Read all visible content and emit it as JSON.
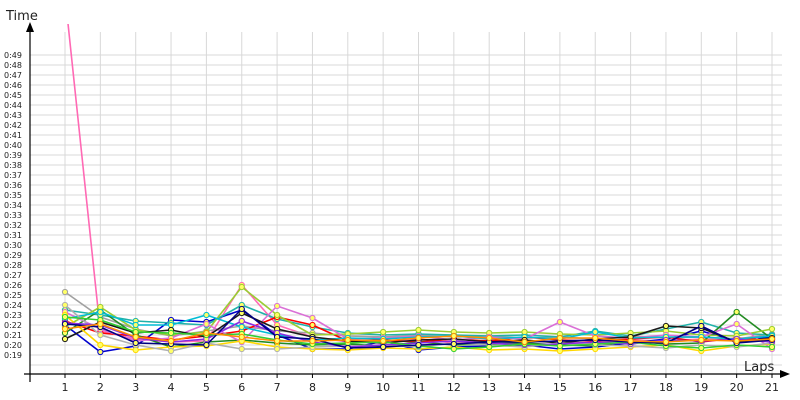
{
  "chart_data": {
    "type": "line",
    "ylabel": "Time",
    "xlabel": "Laps",
    "x": [
      1,
      2,
      3,
      4,
      5,
      6,
      7,
      8,
      9,
      10,
      11,
      12,
      13,
      14,
      15,
      16,
      17,
      18,
      19,
      20,
      21
    ],
    "x_ticks": [
      "1",
      "2",
      "3",
      "4",
      "5",
      "6",
      "7",
      "8",
      "9",
      "10",
      "11",
      "12",
      "13",
      "14",
      "15",
      "16",
      "17",
      "18",
      "19",
      "20",
      "21"
    ],
    "y_ticks": [
      "0:19",
      "0:20",
      "0:21",
      "0:22",
      "0:23",
      "0:24",
      "0:25",
      "0:26",
      "0:27",
      "0:28",
      "0:29",
      "0:30",
      "0:31",
      "0:32",
      "0:33",
      "0:34",
      "0:35",
      "0:36",
      "0:37",
      "0:38",
      "0:39",
      "0:40",
      "0:41",
      "0:42",
      "0:43",
      "0:44",
      "0:45",
      "0:46",
      "0:47",
      "0:48",
      "0:49"
    ],
    "ylim": [
      18,
      50
    ],
    "grid": true,
    "series": [
      {
        "color": "#ff69b4",
        "values": [
          55,
          21.4,
          20.6,
          20.3,
          20.4,
          26.0,
          22.0,
          20.8,
          20.3,
          20.4,
          20.6,
          20.2,
          20.5,
          20.4,
          20.3,
          20.2,
          20.5,
          20.4,
          20.6,
          20.5,
          20.4
        ]
      },
      {
        "color": "#a0a0a0",
        "values": [
          25.3,
          22.8,
          21.6,
          20.9,
          21.4,
          21.9,
          21.4,
          21.2,
          20.9,
          20.8,
          21.0,
          20.8,
          20.9,
          20.7,
          20.8,
          20.6,
          20.9,
          20.7,
          20.8,
          20.6,
          21.1
        ]
      },
      {
        "color": "#0000cd",
        "values": [
          22.0,
          19.3,
          19.9,
          22.5,
          22.3,
          23.5,
          21.0,
          19.6,
          19.6,
          20.4,
          19.5,
          19.8,
          19.9,
          20.0,
          19.6,
          19.8,
          20.2,
          20.6,
          21.4,
          20.4,
          20.8
        ]
      },
      {
        "color": "#20b2aa",
        "values": [
          23.5,
          23.0,
          22.4,
          22.2,
          22.0,
          24.0,
          22.6,
          21.8,
          21.2,
          21.0,
          21.1,
          21.0,
          20.9,
          21.0,
          20.8,
          21.4,
          20.9,
          21.6,
          22.3,
          21.2,
          21.0
        ]
      },
      {
        "color": "#ff0000",
        "values": [
          22.4,
          21.2,
          20.9,
          20.5,
          20.9,
          21.4,
          22.8,
          22.0,
          20.4,
          20.5,
          20.3,
          20.6,
          20.4,
          20.8,
          20.5,
          20.4,
          20.6,
          20.8,
          20.3,
          20.7,
          20.5
        ]
      },
      {
        "color": "#228b22",
        "values": [
          21.2,
          23.5,
          21.0,
          19.8,
          20.3,
          20.5,
          20.2,
          20.0,
          20.1,
          19.9,
          20.3,
          20.0,
          20.1,
          20.2,
          20.0,
          19.9,
          20.4,
          20.1,
          20.2,
          23.3,
          20.6
        ]
      },
      {
        "color": "#9acd32",
        "values": [
          21.8,
          23.8,
          21.5,
          21.0,
          21.3,
          25.8,
          23.0,
          21.0,
          21.1,
          21.3,
          21.5,
          21.3,
          21.2,
          21.3,
          21.1,
          21.0,
          21.2,
          21.4,
          21.0,
          20.9,
          21.6
        ]
      },
      {
        "color": "#da70d6",
        "values": [
          23.3,
          21.6,
          20.4,
          20.7,
          22.1,
          20.3,
          23.9,
          22.7,
          20.6,
          20.7,
          20.9,
          20.5,
          20.8,
          20.6,
          22.3,
          20.9,
          20.7,
          21.0,
          20.8,
          22.1,
          19.6
        ]
      },
      {
        "color": "#00bcd4",
        "values": [
          22.6,
          23.3,
          22.0,
          22.0,
          23.0,
          21.8,
          21.0,
          20.5,
          20.7,
          20.6,
          20.8,
          20.9,
          20.6,
          20.8,
          20.6,
          21.3,
          20.7,
          20.8,
          20.8,
          20.6,
          20.9
        ]
      },
      {
        "color": "#1a1a1a",
        "values": [
          20.6,
          22.3,
          21.2,
          21.5,
          20.8,
          23.2,
          21.6,
          20.8,
          20.4,
          20.2,
          20.5,
          20.6,
          20.3,
          20.5,
          20.2,
          20.6,
          20.8,
          21.9,
          21.7,
          20.3,
          20.7
        ]
      },
      {
        "color": "#ffd700",
        "values": [
          23.0,
          20.0,
          19.5,
          19.8,
          19.9,
          20.4,
          19.8,
          19.6,
          19.5,
          19.7,
          19.6,
          19.8,
          19.5,
          19.6,
          19.4,
          19.6,
          19.8,
          20.0,
          19.4,
          19.9,
          20.1
        ]
      },
      {
        "color": "#b0b0b0",
        "values": [
          24.0,
          21.0,
          20.0,
          19.4,
          20.2,
          19.6,
          19.6,
          19.8,
          19.9,
          20.0,
          19.8,
          20.2,
          20.0,
          19.8,
          20.2,
          20.0,
          19.9,
          19.7,
          20.0,
          19.8,
          20.2
        ]
      },
      {
        "color": "#8a2be2",
        "values": [
          22.2,
          22.0,
          20.7,
          20.3,
          20.6,
          22.4,
          21.2,
          20.3,
          19.8,
          20.0,
          20.2,
          20.4,
          20.2,
          20.0,
          20.1,
          20.3,
          20.1,
          20.5,
          20.4,
          20.6,
          20.3
        ]
      },
      {
        "color": "#32cd32",
        "values": [
          22.8,
          22.5,
          21.3,
          21.2,
          21.0,
          21.1,
          20.5,
          20.1,
          20.2,
          20.3,
          19.9,
          19.6,
          19.8,
          20.1,
          19.9,
          20.1,
          20.3,
          19.9,
          19.7,
          20.0,
          19.8
        ]
      },
      {
        "color": "#000080",
        "values": [
          22.1,
          21.8,
          20.2,
          20.1,
          20.0,
          23.6,
          20.8,
          20.6,
          19.7,
          19.8,
          20.0,
          20.1,
          20.3,
          20.3,
          20.4,
          20.5,
          20.3,
          20.2,
          21.9,
          20.2,
          20.5
        ]
      },
      {
        "color": "#ff8c00",
        "values": [
          21.6,
          22.1,
          20.8,
          20.4,
          21.2,
          20.8,
          20.4,
          20.4,
          20.5,
          20.4,
          20.7,
          20.9,
          20.7,
          20.3,
          20.7,
          20.7,
          20.4,
          20.3,
          20.5,
          20.4,
          20.6
        ]
      }
    ]
  }
}
